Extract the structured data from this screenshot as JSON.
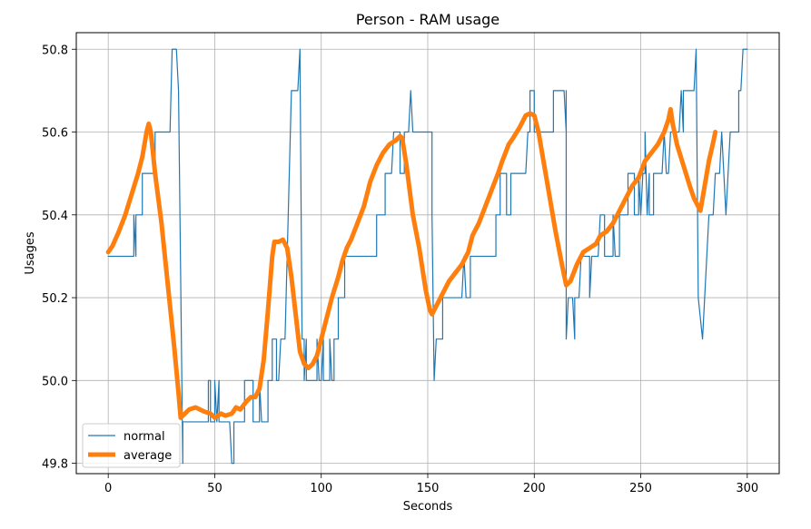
{
  "chart_data": {
    "type": "line",
    "title": "Person - RAM usage",
    "xlabel": "Seconds",
    "ylabel": "Usages",
    "xlim": [
      -15,
      315
    ],
    "ylim": [
      49.775,
      50.84
    ],
    "xticks": [
      0,
      50,
      100,
      150,
      200,
      250,
      300
    ],
    "yticks": [
      49.8,
      50.0,
      50.2,
      50.4,
      50.6,
      50.8
    ],
    "xtick_labels": [
      "0",
      "50",
      "100",
      "150",
      "200",
      "250",
      "300"
    ],
    "ytick_labels": [
      "49.8",
      "50.0",
      "50.2",
      "50.4",
      "50.6",
      "50.8"
    ],
    "grid": true,
    "legend_position": "lower-left",
    "series": [
      {
        "name": "normal",
        "color": "#1f77b4",
        "points": [
          [
            0,
            50.3
          ],
          [
            12,
            50.3
          ],
          [
            12,
            50.4
          ],
          [
            13,
            50.3
          ],
          [
            13,
            50.4
          ],
          [
            16,
            50.4
          ],
          [
            16,
            50.5
          ],
          [
            22,
            50.5
          ],
          [
            22,
            50.6
          ],
          [
            29,
            50.6
          ],
          [
            30,
            50.8
          ],
          [
            32,
            50.8
          ],
          [
            33,
            50.7
          ],
          [
            35,
            49.8
          ],
          [
            35,
            49.9
          ],
          [
            47,
            49.9
          ],
          [
            47,
            50.0
          ],
          [
            48,
            50.0
          ],
          [
            48,
            49.9
          ],
          [
            50,
            49.9
          ],
          [
            50,
            50.0
          ],
          [
            51,
            49.9
          ],
          [
            52,
            50.0
          ],
          [
            52,
            49.9
          ],
          [
            57,
            49.9
          ],
          [
            58,
            49.8
          ],
          [
            59,
            49.8
          ],
          [
            59,
            49.9
          ],
          [
            64,
            49.9
          ],
          [
            64,
            50.0
          ],
          [
            68,
            50.0
          ],
          [
            68,
            49.9
          ],
          [
            71,
            49.9
          ],
          [
            71,
            50.0
          ],
          [
            72,
            49.9
          ],
          [
            75,
            49.9
          ],
          [
            75,
            50.0
          ],
          [
            77,
            50.0
          ],
          [
            77,
            50.1
          ],
          [
            79,
            50.1
          ],
          [
            79,
            50.0
          ],
          [
            80,
            50.0
          ],
          [
            81,
            50.1
          ],
          [
            83,
            50.1
          ],
          [
            85,
            50.5
          ],
          [
            86,
            50.7
          ],
          [
            89,
            50.7
          ],
          [
            90,
            50.8
          ],
          [
            91,
            50.1
          ],
          [
            92,
            50.1
          ],
          [
            92,
            50.0
          ],
          [
            93,
            50.1
          ],
          [
            93,
            50.0
          ],
          [
            98,
            50.0
          ],
          [
            98,
            50.1
          ],
          [
            99,
            50.0
          ],
          [
            100,
            50.0
          ],
          [
            101,
            50.1
          ],
          [
            101,
            50.0
          ],
          [
            104,
            50.0
          ],
          [
            104,
            50.1
          ],
          [
            105,
            50.0
          ],
          [
            106,
            50.0
          ],
          [
            106,
            50.1
          ],
          [
            108,
            50.1
          ],
          [
            108,
            50.2
          ],
          [
            111,
            50.2
          ],
          [
            111,
            50.3
          ],
          [
            126,
            50.3
          ],
          [
            126,
            50.4
          ],
          [
            130,
            50.4
          ],
          [
            130,
            50.5
          ],
          [
            133,
            50.5
          ],
          [
            134,
            50.6
          ],
          [
            137,
            50.6
          ],
          [
            137,
            50.5
          ],
          [
            139,
            50.5
          ],
          [
            139,
            50.6
          ],
          [
            141,
            50.6
          ],
          [
            142,
            50.7
          ],
          [
            143,
            50.6
          ],
          [
            152,
            50.6
          ],
          [
            152,
            50.4
          ],
          [
            153,
            50.0
          ],
          [
            154,
            50.1
          ],
          [
            157,
            50.1
          ],
          [
            157,
            50.2
          ],
          [
            166,
            50.2
          ],
          [
            167,
            50.3
          ],
          [
            168,
            50.2
          ],
          [
            170,
            50.2
          ],
          [
            170,
            50.3
          ],
          [
            182,
            50.3
          ],
          [
            182,
            50.4
          ],
          [
            184,
            50.4
          ],
          [
            184,
            50.5
          ],
          [
            187,
            50.5
          ],
          [
            187,
            50.4
          ],
          [
            189,
            50.4
          ],
          [
            189,
            50.5
          ],
          [
            196,
            50.5
          ],
          [
            197,
            50.6
          ],
          [
            198,
            50.6
          ],
          [
            198,
            50.7
          ],
          [
            200,
            50.7
          ],
          [
            200,
            50.6
          ],
          [
            209,
            50.6
          ],
          [
            209,
            50.7
          ],
          [
            214,
            50.7
          ],
          [
            215,
            50.6
          ],
          [
            215,
            50.7
          ],
          [
            215,
            50.1
          ],
          [
            216,
            50.2
          ],
          [
            218,
            50.2
          ],
          [
            219,
            50.1
          ],
          [
            219,
            50.2
          ],
          [
            221,
            50.2
          ],
          [
            222,
            50.3
          ],
          [
            226,
            50.3
          ],
          [
            226,
            50.2
          ],
          [
            227,
            50.3
          ],
          [
            230,
            50.3
          ],
          [
            231,
            50.4
          ],
          [
            233,
            50.4
          ],
          [
            233,
            50.3
          ],
          [
            237,
            50.3
          ],
          [
            237,
            50.4
          ],
          [
            238,
            50.3
          ],
          [
            240,
            50.3
          ],
          [
            240,
            50.4
          ],
          [
            244,
            50.4
          ],
          [
            244,
            50.5
          ],
          [
            247,
            50.5
          ],
          [
            247,
            50.4
          ],
          [
            249,
            50.4
          ],
          [
            249,
            50.5
          ],
          [
            250,
            50.4
          ],
          [
            251,
            50.5
          ],
          [
            252,
            50.5
          ],
          [
            252,
            50.6
          ],
          [
            253,
            50.4
          ],
          [
            254,
            50.5
          ],
          [
            254,
            50.4
          ],
          [
            256,
            50.4
          ],
          [
            256,
            50.5
          ],
          [
            260,
            50.5
          ],
          [
            261,
            50.6
          ],
          [
            262,
            50.5
          ],
          [
            263,
            50.5
          ],
          [
            264,
            50.6
          ],
          [
            268,
            50.6
          ],
          [
            269,
            50.7
          ],
          [
            270,
            50.6
          ],
          [
            270,
            50.7
          ],
          [
            275,
            50.7
          ],
          [
            276,
            50.8
          ],
          [
            277,
            50.2
          ],
          [
            279,
            50.1
          ],
          [
            282,
            50.4
          ],
          [
            284,
            50.4
          ],
          [
            285,
            50.5
          ],
          [
            287,
            50.5
          ],
          [
            288,
            50.6
          ],
          [
            290,
            50.4
          ],
          [
            292,
            50.6
          ],
          [
            296,
            50.6
          ],
          [
            296,
            50.7
          ],
          [
            297,
            50.7
          ],
          [
            298,
            50.8
          ],
          [
            300,
            50.8
          ]
        ]
      },
      {
        "name": "average",
        "color": "#ff7f0e",
        "points": [
          [
            0,
            50.31
          ],
          [
            2,
            50.325
          ],
          [
            5,
            50.36
          ],
          [
            8,
            50.4
          ],
          [
            11,
            50.45
          ],
          [
            14,
            50.5
          ],
          [
            16,
            50.54
          ],
          [
            18,
            50.6
          ],
          [
            19,
            50.62
          ],
          [
            20,
            50.6
          ],
          [
            22,
            50.5
          ],
          [
            25,
            50.38
          ],
          [
            28,
            50.23
          ],
          [
            31,
            50.08
          ],
          [
            33,
            49.97
          ],
          [
            34,
            49.91
          ],
          [
            36,
            49.92
          ],
          [
            38,
            49.93
          ],
          [
            41,
            49.935
          ],
          [
            43,
            49.93
          ],
          [
            45,
            49.925
          ],
          [
            48,
            49.92
          ],
          [
            50,
            49.91
          ],
          [
            53,
            49.92
          ],
          [
            55,
            49.915
          ],
          [
            58,
            49.92
          ],
          [
            60,
            49.935
          ],
          [
            62,
            49.93
          ],
          [
            65,
            49.95
          ],
          [
            67,
            49.96
          ],
          [
            69,
            49.96
          ],
          [
            71,
            49.98
          ],
          [
            73,
            50.05
          ],
          [
            75,
            50.17
          ],
          [
            77,
            50.3
          ],
          [
            78,
            50.335
          ],
          [
            80,
            50.335
          ],
          [
            82,
            50.34
          ],
          [
            84,
            50.32
          ],
          [
            86,
            50.25
          ],
          [
            88,
            50.16
          ],
          [
            90,
            50.07
          ],
          [
            92,
            50.04
          ],
          [
            94,
            50.03
          ],
          [
            96,
            50.04
          ],
          [
            98,
            50.06
          ],
          [
            100,
            50.1
          ],
          [
            103,
            50.16
          ],
          [
            105,
            50.2
          ],
          [
            108,
            50.25
          ],
          [
            110,
            50.29
          ],
          [
            112,
            50.32
          ],
          [
            114,
            50.34
          ],
          [
            117,
            50.38
          ],
          [
            120,
            50.42
          ],
          [
            123,
            50.48
          ],
          [
            126,
            50.52
          ],
          [
            129,
            50.55
          ],
          [
            132,
            50.57
          ],
          [
            135,
            50.58
          ],
          [
            137,
            50.59
          ],
          [
            138,
            50.585
          ],
          [
            140,
            50.52
          ],
          [
            143,
            50.4
          ],
          [
            146,
            50.32
          ],
          [
            149,
            50.22
          ],
          [
            151,
            50.17
          ],
          [
            152,
            50.16
          ],
          [
            154,
            50.18
          ],
          [
            157,
            50.21
          ],
          [
            160,
            50.24
          ],
          [
            163,
            50.26
          ],
          [
            166,
            50.28
          ],
          [
            169,
            50.31
          ],
          [
            171,
            50.35
          ],
          [
            174,
            50.38
          ],
          [
            177,
            50.42
          ],
          [
            180,
            50.46
          ],
          [
            183,
            50.5
          ],
          [
            185,
            50.53
          ],
          [
            188,
            50.57
          ],
          [
            190,
            50.585
          ],
          [
            193,
            50.61
          ],
          [
            196,
            50.64
          ],
          [
            198,
            50.645
          ],
          [
            200,
            50.64
          ],
          [
            202,
            50.6
          ],
          [
            204,
            50.54
          ],
          [
            207,
            50.45
          ],
          [
            210,
            50.36
          ],
          [
            213,
            50.28
          ],
          [
            215,
            50.23
          ],
          [
            217,
            50.24
          ],
          [
            220,
            50.28
          ],
          [
            223,
            50.31
          ],
          [
            226,
            50.32
          ],
          [
            229,
            50.33
          ],
          [
            231,
            50.35
          ],
          [
            234,
            50.36
          ],
          [
            237,
            50.38
          ],
          [
            240,
            50.41
          ],
          [
            243,
            50.44
          ],
          [
            246,
            50.47
          ],
          [
            249,
            50.49
          ],
          [
            252,
            50.53
          ],
          [
            255,
            50.55
          ],
          [
            258,
            50.57
          ],
          [
            261,
            50.6
          ],
          [
            263,
            50.63
          ],
          [
            264,
            50.655
          ],
          [
            265,
            50.62
          ],
          [
            267,
            50.57
          ],
          [
            270,
            50.52
          ],
          [
            273,
            50.47
          ],
          [
            275,
            50.44
          ],
          [
            277,
            50.42
          ],
          [
            278,
            50.41
          ],
          [
            280,
            50.47
          ],
          [
            282,
            50.53
          ],
          [
            284,
            50.575
          ],
          [
            285,
            50.6
          ]
        ]
      }
    ]
  }
}
